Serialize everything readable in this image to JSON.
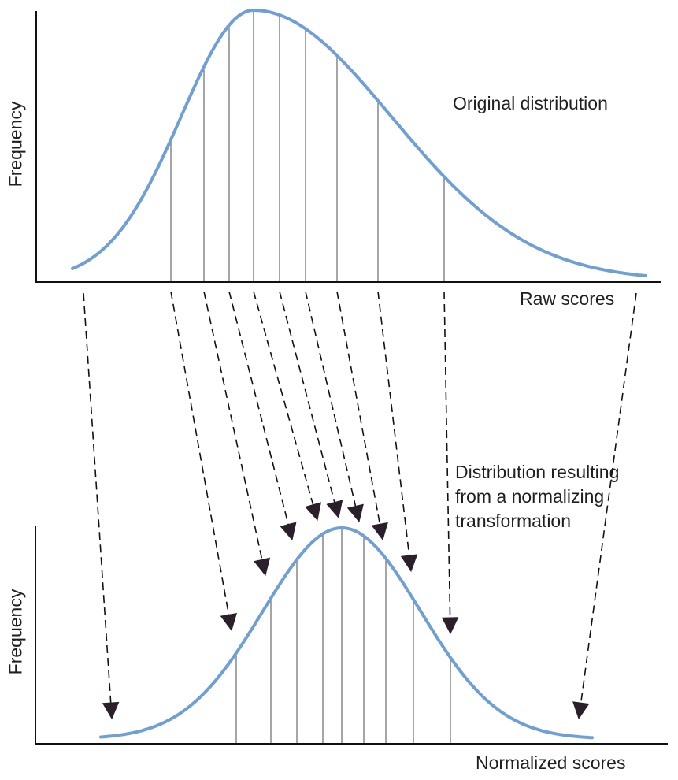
{
  "diagram": {
    "top_y_axis_label": "Frequency",
    "top_x_axis_label": "Raw scores",
    "top_curve_label": "Original distribution",
    "bottom_y_axis_label": "Frequency",
    "bottom_x_axis_label": "Normalized scores",
    "bottom_curve_label_lines": [
      "Distribution resulting",
      "from a normalizing",
      "transformation"
    ],
    "colors": {
      "curve": "#6e9fd6",
      "axis": "#111111",
      "guide": "#6a6a6a",
      "arrowhead": "#2a1f2a",
      "text": "#1f1f1f",
      "background": "#ffffff"
    }
  }
}
